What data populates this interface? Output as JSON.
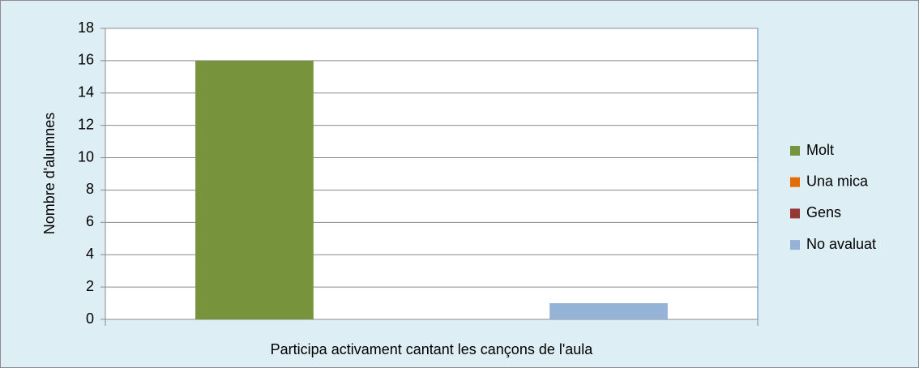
{
  "chart_data": {
    "type": "bar",
    "y_label": "Nombre d'alumnes",
    "categories": [
      "Participa activament cantant les cançons de l'aula"
    ],
    "series": [
      {
        "name": "Molt",
        "color": "#77933c",
        "values": [
          16
        ]
      },
      {
        "name": "Una mica",
        "color": "#e36c09",
        "values": [
          0
        ]
      },
      {
        "name": "Gens",
        "color": "#953735",
        "values": [
          0
        ]
      },
      {
        "name": "No avaluat",
        "color": "#95b3d7",
        "values": [
          1
        ]
      }
    ],
    "ylim": [
      0,
      18
    ],
    "yticks": [
      0,
      2,
      4,
      6,
      8,
      10,
      12,
      14,
      16,
      18
    ],
    "grid": true,
    "legend": "right"
  }
}
